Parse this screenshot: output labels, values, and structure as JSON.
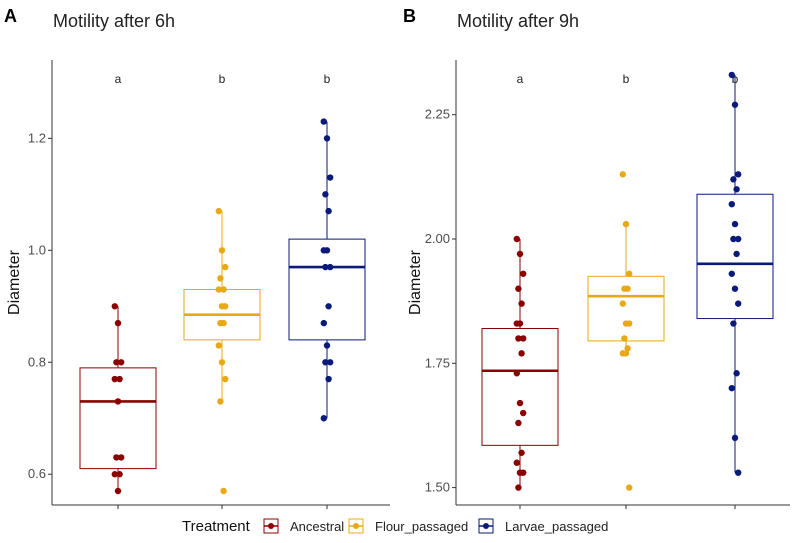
{
  "legend": {
    "title": "Treatment",
    "entries": [
      {
        "label": "Ancestral",
        "color": "#8B0000"
      },
      {
        "label": "Flour_passaged",
        "color": "#E8A817"
      },
      {
        "label": "Larvae_passaged",
        "color": "#0A1A7A"
      }
    ]
  },
  "chart_data": [
    {
      "type": "boxplot",
      "panel": "A",
      "title": "Motility after 6h",
      "xlabel": "",
      "ylabel": "Diameter",
      "ylim": [
        0.545,
        1.34
      ],
      "yticks": [
        0.6,
        0.8,
        1.0,
        1.2
      ],
      "ytick_labels": [
        "0.6",
        "0.8",
        "1.0",
        "1.2"
      ],
      "categories": [
        "Ancestral",
        "Flour_passaged",
        "Larvae_passaged"
      ],
      "significance_letters": [
        "a",
        "b",
        "b"
      ],
      "boxes": [
        {
          "q1": 0.61,
          "median": 0.73,
          "q3": 0.79,
          "whisker_low": 0.57,
          "whisker_high": 0.9
        },
        {
          "q1": 0.84,
          "median": 0.885,
          "q3": 0.93,
          "whisker_low": 0.73,
          "whisker_high": 1.07
        },
        {
          "q1": 0.84,
          "median": 0.97,
          "q3": 1.02,
          "whisker_low": 0.7,
          "whisker_high": 1.23
        }
      ],
      "points": [
        [
          0.9,
          0.87,
          0.8,
          0.8,
          0.77,
          0.77,
          0.73,
          0.63,
          0.63,
          0.6,
          0.6,
          0.57
        ],
        [
          1.07,
          1.0,
          0.97,
          0.95,
          0.93,
          0.93,
          0.9,
          0.9,
          0.87,
          0.87,
          0.83,
          0.8,
          0.77,
          0.73,
          0.57
        ],
        [
          1.23,
          1.2,
          1.13,
          1.1,
          1.07,
          1.0,
          1.0,
          0.97,
          0.97,
          0.9,
          0.87,
          0.83,
          0.8,
          0.8,
          0.77,
          0.7
        ]
      ]
    },
    {
      "type": "boxplot",
      "panel": "B",
      "title": "Motility after 9h",
      "xlabel": "",
      "ylabel": "Diameter",
      "ylim": [
        1.465,
        2.36
      ],
      "yticks": [
        1.5,
        1.75,
        2.0,
        2.25
      ],
      "ytick_labels": [
        "1.50",
        "1.75",
        "2.00",
        "2.25"
      ],
      "categories": [
        "Ancestral",
        "Flour_passaged",
        "Larvae_passaged"
      ],
      "significance_letters": [
        "a",
        "b",
        "b"
      ],
      "boxes": [
        {
          "q1": 1.585,
          "median": 1.735,
          "q3": 1.82,
          "whisker_low": 1.5,
          "whisker_high": 2.0
        },
        {
          "q1": 1.795,
          "median": 1.885,
          "q3": 1.925,
          "whisker_low": 1.77,
          "whisker_high": 2.03
        },
        {
          "q1": 1.84,
          "median": 1.95,
          "q3": 2.09,
          "whisker_low": 1.53,
          "whisker_high": 2.33
        }
      ],
      "points": [
        [
          2.0,
          1.97,
          1.93,
          1.9,
          1.87,
          1.83,
          1.83,
          1.8,
          1.8,
          1.77,
          1.73,
          1.67,
          1.65,
          1.63,
          1.57,
          1.55,
          1.53,
          1.53,
          1.5
        ],
        [
          2.13,
          2.03,
          1.93,
          1.9,
          1.9,
          1.87,
          1.83,
          1.83,
          1.8,
          1.78,
          1.77,
          1.77,
          1.5
        ],
        [
          2.33,
          2.27,
          2.13,
          2.12,
          2.1,
          2.07,
          2.03,
          2.0,
          2.0,
          1.97,
          1.93,
          1.9,
          1.87,
          1.83,
          1.73,
          1.7,
          1.6,
          1.53
        ]
      ]
    }
  ]
}
